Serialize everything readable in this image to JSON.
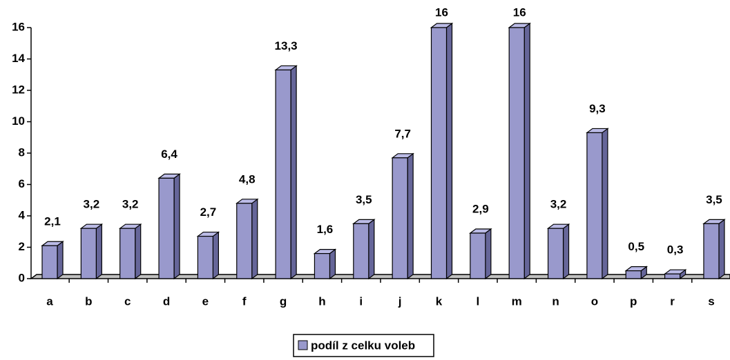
{
  "chart_data": {
    "type": "bar",
    "categories": [
      "a",
      "b",
      "c",
      "d",
      "e",
      "f",
      "g",
      "h",
      "i",
      "j",
      "k",
      "l",
      "m",
      "n",
      "o",
      "p",
      "r",
      "s"
    ],
    "series": [
      {
        "name": "podíl z celku voleb",
        "color": "#9999cc",
        "values": [
          2.1,
          3.2,
          3.2,
          6.4,
          2.7,
          4.8,
          13.3,
          1.6,
          3.5,
          7.7,
          16,
          2.9,
          16,
          3.2,
          9.3,
          0.5,
          0.3,
          3.5
        ],
        "value_labels": [
          "2,1",
          "3,2",
          "3,2",
          "6,4",
          "2,7",
          "4,8",
          "13,3",
          "1,6",
          "3,5",
          "7,7",
          "16",
          "2,9",
          "16",
          "3,2",
          "9,3",
          "0,5",
          "0,3",
          "3,5"
        ]
      }
    ],
    "ylim": [
      0,
      16
    ],
    "yticks": [
      0,
      2,
      4,
      6,
      8,
      10,
      12,
      14,
      16
    ]
  }
}
